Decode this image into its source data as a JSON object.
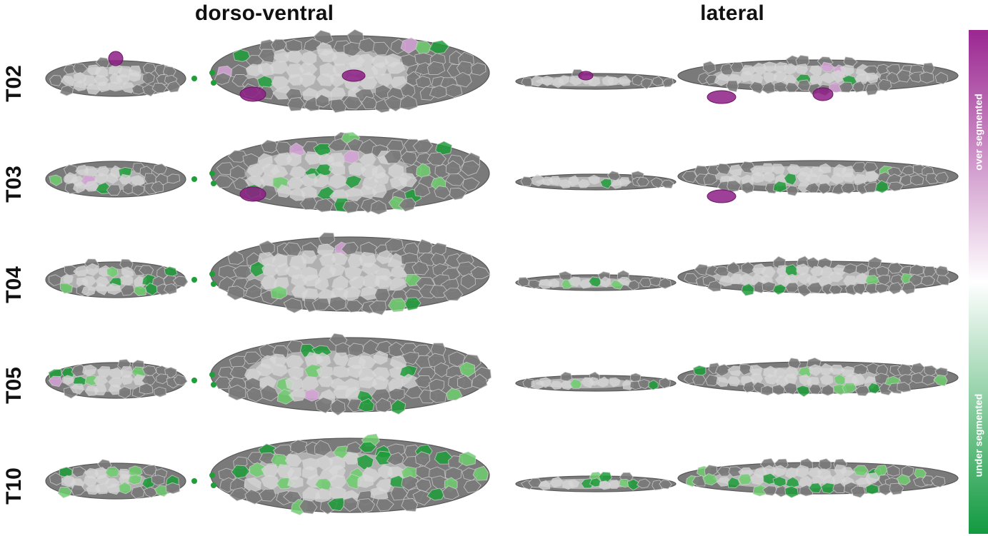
{
  "figure": {
    "columns": [
      {
        "id": "dorso-ventral",
        "label": "dorso-ventral"
      },
      {
        "id": "lateral",
        "label": "lateral"
      }
    ],
    "rows": [
      {
        "label": "T02",
        "dv_green": 0.1,
        "dv_pink": 0.28,
        "lat_green": 0.1,
        "lat_pink": 0.4
      },
      {
        "label": "T03",
        "dv_green": 0.22,
        "dv_pink": 0.18,
        "lat_green": 0.25,
        "lat_pink": 0.2
      },
      {
        "label": "T04",
        "dv_green": 0.3,
        "dv_pink": 0.06,
        "lat_green": 0.35,
        "lat_pink": 0.0
      },
      {
        "label": "T05",
        "dv_green": 0.4,
        "dv_pink": 0.05,
        "lat_green": 0.45,
        "lat_pink": 0.0
      },
      {
        "label": "T10",
        "dv_green": 0.9,
        "dv_pink": 0.08,
        "lat_green": 0.85,
        "lat_pink": 0.0
      }
    ]
  },
  "colorbar": {
    "top_label": "over segmented",
    "bottom_label": "under segmented",
    "top_color": "#9b2791",
    "mid_color": "#ffffff",
    "bottom_color": "#129a40"
  },
  "colors": {
    "cell_fill": "#7a7a7a",
    "cell_edge": "#cfcfcf",
    "highlight": "#e6e6e6",
    "green": "#1f9e3a",
    "green_light": "#6fcf6f",
    "magenta": "#8e1f86",
    "pink": "#d7a3d7"
  }
}
